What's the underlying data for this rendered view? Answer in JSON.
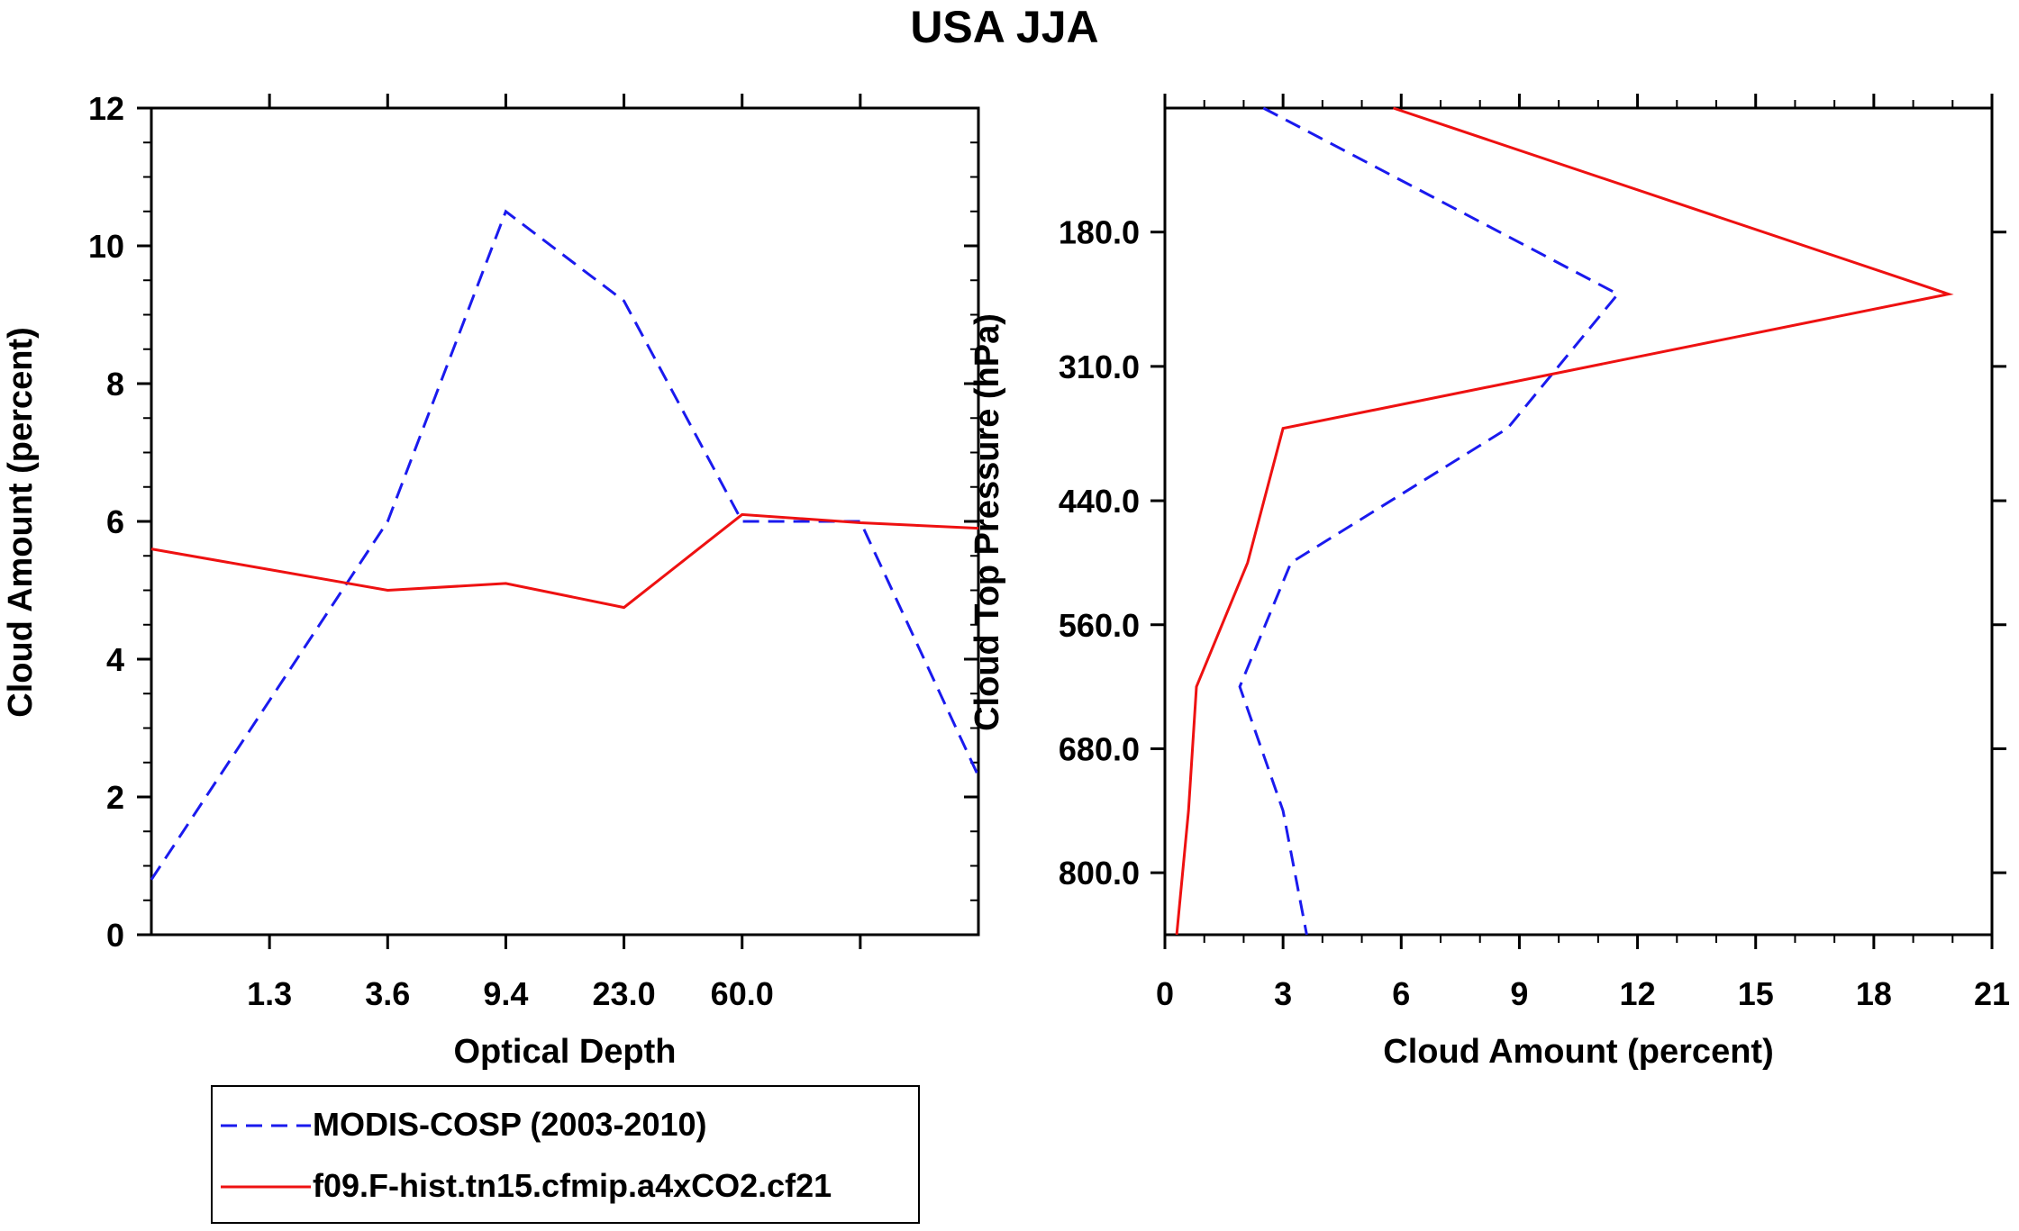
{
  "title": "USA JJA",
  "colors": {
    "modis": "#1a1aee",
    "model": "#ee1111",
    "axis": "#000000"
  },
  "legend": {
    "entries": [
      {
        "label": "MODIS-COSP (2003-2010)",
        "color": "#1a1aee",
        "style": "dashed"
      },
      {
        "label": "f09.F-hist.tn15.cfmip.a4xCO2.cf21",
        "color": "#ee1111",
        "style": "solid"
      }
    ]
  },
  "chart_data": [
    {
      "type": "line",
      "xlabel": "Optical Depth",
      "ylabel": "Cloud Amount (percent)",
      "xlim": [
        0,
        7
      ],
      "ylim": [
        0,
        12
      ],
      "x_ticks": [
        1,
        2,
        3,
        4,
        5,
        6
      ],
      "x_tick_labels": [
        "1.3",
        "3.6",
        "9.4",
        "23.0",
        "60.0"
      ],
      "x_label_positions": [
        1,
        2,
        3,
        4,
        5
      ],
      "y_ticks": [
        0,
        2,
        4,
        6,
        8,
        10,
        12
      ],
      "y_tick_labels": [
        "0",
        "2",
        "4",
        "6",
        "8",
        "10",
        "12"
      ],
      "series": [
        {
          "name": "MODIS-COSP (2003-2010)",
          "x": [
            0,
            1,
            2,
            3,
            4,
            5,
            6,
            7
          ],
          "values": [
            0.8,
            3.4,
            6.0,
            10.5,
            9.2,
            6.0,
            6.0,
            2.3
          ]
        },
        {
          "name": "f09.F-hist.tn15.cfmip.a4xCO2.cf21",
          "x": [
            0,
            1,
            2,
            3,
            4,
            5,
            6,
            7
          ],
          "values": [
            5.6,
            5.3,
            5.0,
            5.1,
            4.75,
            6.1,
            5.98,
            5.9
          ]
        }
      ]
    },
    {
      "type": "line",
      "orientation": "vertical-profile",
      "xlabel": "Cloud Amount (percent)",
      "ylabel": "Cloud Top Pressure (hPa)",
      "xlim": [
        0,
        21
      ],
      "ylim": [
        60,
        860
      ],
      "y_inverted": true,
      "x_ticks": [
        0,
        3,
        6,
        9,
        12,
        15,
        18,
        21
      ],
      "x_tick_labels": [
        "0",
        "3",
        "6",
        "9",
        "12",
        "15",
        "18",
        "21"
      ],
      "y_ticks": [
        180,
        310,
        440,
        560,
        680,
        800
      ],
      "y_tick_labels": [
        "180.0",
        "310.0",
        "440.0",
        "560.0",
        "680.0",
        "800.0"
      ],
      "series": [
        {
          "name": "MODIS-COSP (2003-2010)",
          "pressure": [
            60,
            240,
            370,
            500,
            620,
            740,
            860
          ],
          "values": [
            2.5,
            11.5,
            8.7,
            3.2,
            1.9,
            3.0,
            3.6
          ]
        },
        {
          "name": "f09.F-hist.tn15.cfmip.a4xCO2.cf21",
          "pressure": [
            60,
            240,
            370,
            500,
            620,
            740,
            860
          ],
          "values": [
            5.8,
            19.9,
            3.0,
            2.1,
            0.8,
            0.6,
            0.3
          ]
        }
      ]
    }
  ]
}
